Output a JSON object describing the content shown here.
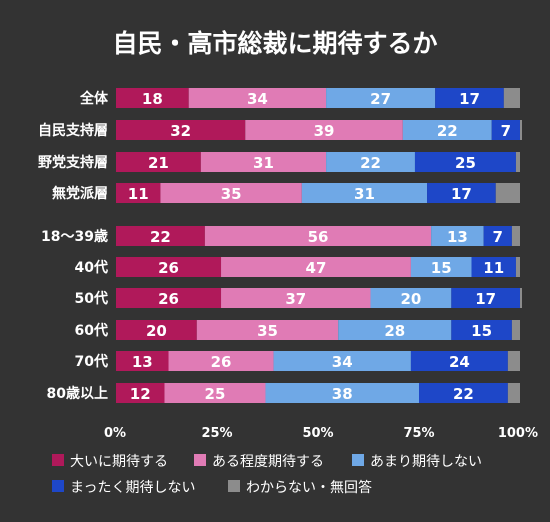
{
  "chart_data": {
    "type": "bar",
    "orientation": "horizontal",
    "stacked": true,
    "title": "自民・高市総裁に期待するか",
    "categories": [
      "全体",
      "自民支持層",
      "野党支持層",
      "無党派層",
      "18〜39歳",
      "40代",
      "50代",
      "60代",
      "70代",
      "80歳以上"
    ],
    "series": [
      {
        "name": "大いに期待する",
        "color": "#B0195A",
        "values": [
          18,
          32,
          21,
          11,
          22,
          26,
          26,
          20,
          13,
          12
        ],
        "labels": [
          "18",
          "32",
          "21",
          "11",
          "22",
          "26",
          "26",
          "20",
          "13",
          "12"
        ]
      },
      {
        "name": "ある程度期待する",
        "color": "#E07BB5",
        "values": [
          34,
          39,
          31,
          35,
          56,
          47,
          37,
          35,
          26,
          25
        ],
        "labels": [
          "34",
          "39",
          "31",
          "35",
          "56",
          "47",
          "37",
          "35",
          "26",
          "25"
        ]
      },
      {
        "name": "あまり期待しない",
        "color": "#6FA8E6",
        "values": [
          27,
          22,
          22,
          31,
          13,
          15,
          20,
          28,
          34,
          38
        ],
        "labels": [
          "27",
          "22",
          "22",
          "31",
          "13",
          "15",
          "20",
          "28",
          "34",
          "38"
        ]
      },
      {
        "name": "まったく期待しない",
        "color": "#1E47C8",
        "values": [
          17,
          7,
          25,
          17,
          7,
          11,
          17,
          15,
          24,
          22
        ],
        "labels": [
          "17",
          "7",
          "25",
          "17",
          "7",
          "11",
          "17",
          "15",
          "24",
          "22"
        ]
      },
      {
        "name": "わからない・無回答",
        "color": "#8C8C8C",
        "values": [
          4,
          0.5,
          1,
          6,
          2,
          1,
          1,
          2,
          3,
          3
        ],
        "labels": [
          "",
          "",
          "",
          "",
          "",
          "",
          "",
          "",
          "",
          ""
        ]
      }
    ],
    "xlim": [
      0,
      100
    ],
    "xticks": [
      "0%",
      "25%",
      "50%",
      "75%",
      "100%"
    ],
    "xtick_values": [
      0,
      25,
      50,
      75,
      100
    ],
    "grid": false,
    "legend_placement": "bottom"
  }
}
